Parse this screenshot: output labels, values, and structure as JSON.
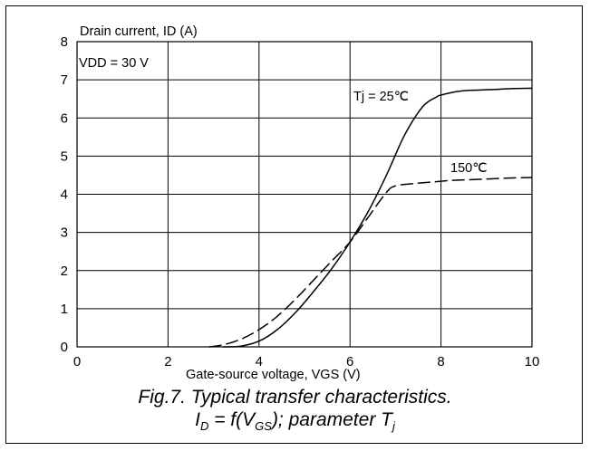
{
  "chart_data": {
    "type": "line",
    "ylabel": "Drain current, ID (A)",
    "xlabel": "Gate-source voltage, VGS (V)",
    "xlim": [
      0,
      10
    ],
    "ylim": [
      0,
      8
    ],
    "x_ticks": [
      "0",
      "2",
      "4",
      "6",
      "8",
      "10"
    ],
    "y_ticks": [
      "0",
      "1",
      "2",
      "3",
      "4",
      "5",
      "6",
      "7",
      "8"
    ],
    "grid": true,
    "condition_label": "VDD = 30 V",
    "series": [
      {
        "name": "Tj = 25℃",
        "style": "solid",
        "x": [
          3.2,
          3.6,
          4.0,
          4.4,
          4.8,
          5.2,
          5.6,
          6.0,
          6.4,
          6.8,
          7.2,
          7.6,
          7.9,
          8.0,
          8.4,
          8.8,
          9.2,
          9.6,
          10.0
        ],
        "y": [
          0.0,
          0.02,
          0.15,
          0.45,
          0.9,
          1.45,
          2.05,
          2.75,
          3.55,
          4.5,
          5.55,
          6.3,
          6.55,
          6.6,
          6.7,
          6.73,
          6.75,
          6.77,
          6.78
        ]
      },
      {
        "name": "150℃",
        "style": "dashed",
        "x": [
          2.9,
          3.2,
          3.6,
          4.0,
          4.4,
          4.8,
          5.2,
          5.6,
          6.0,
          6.4,
          6.8,
          7.0,
          7.4,
          7.8,
          8.2,
          8.6,
          9.0,
          9.4,
          10.0
        ],
        "y": [
          0.0,
          0.05,
          0.2,
          0.45,
          0.8,
          1.25,
          1.75,
          2.25,
          2.75,
          3.4,
          4.05,
          4.22,
          4.28,
          4.32,
          4.36,
          4.38,
          4.4,
          4.42,
          4.44
        ]
      }
    ]
  },
  "caption": {
    "line1": "Fig.7.  Typical transfer characteristics.",
    "line2_i": "I",
    "line2_i_sub": "D",
    "line2_mid": " = f(V",
    "line2_v_sub": "GS",
    "line2_end": "); parameter T",
    "line2_t_sub": "j"
  }
}
